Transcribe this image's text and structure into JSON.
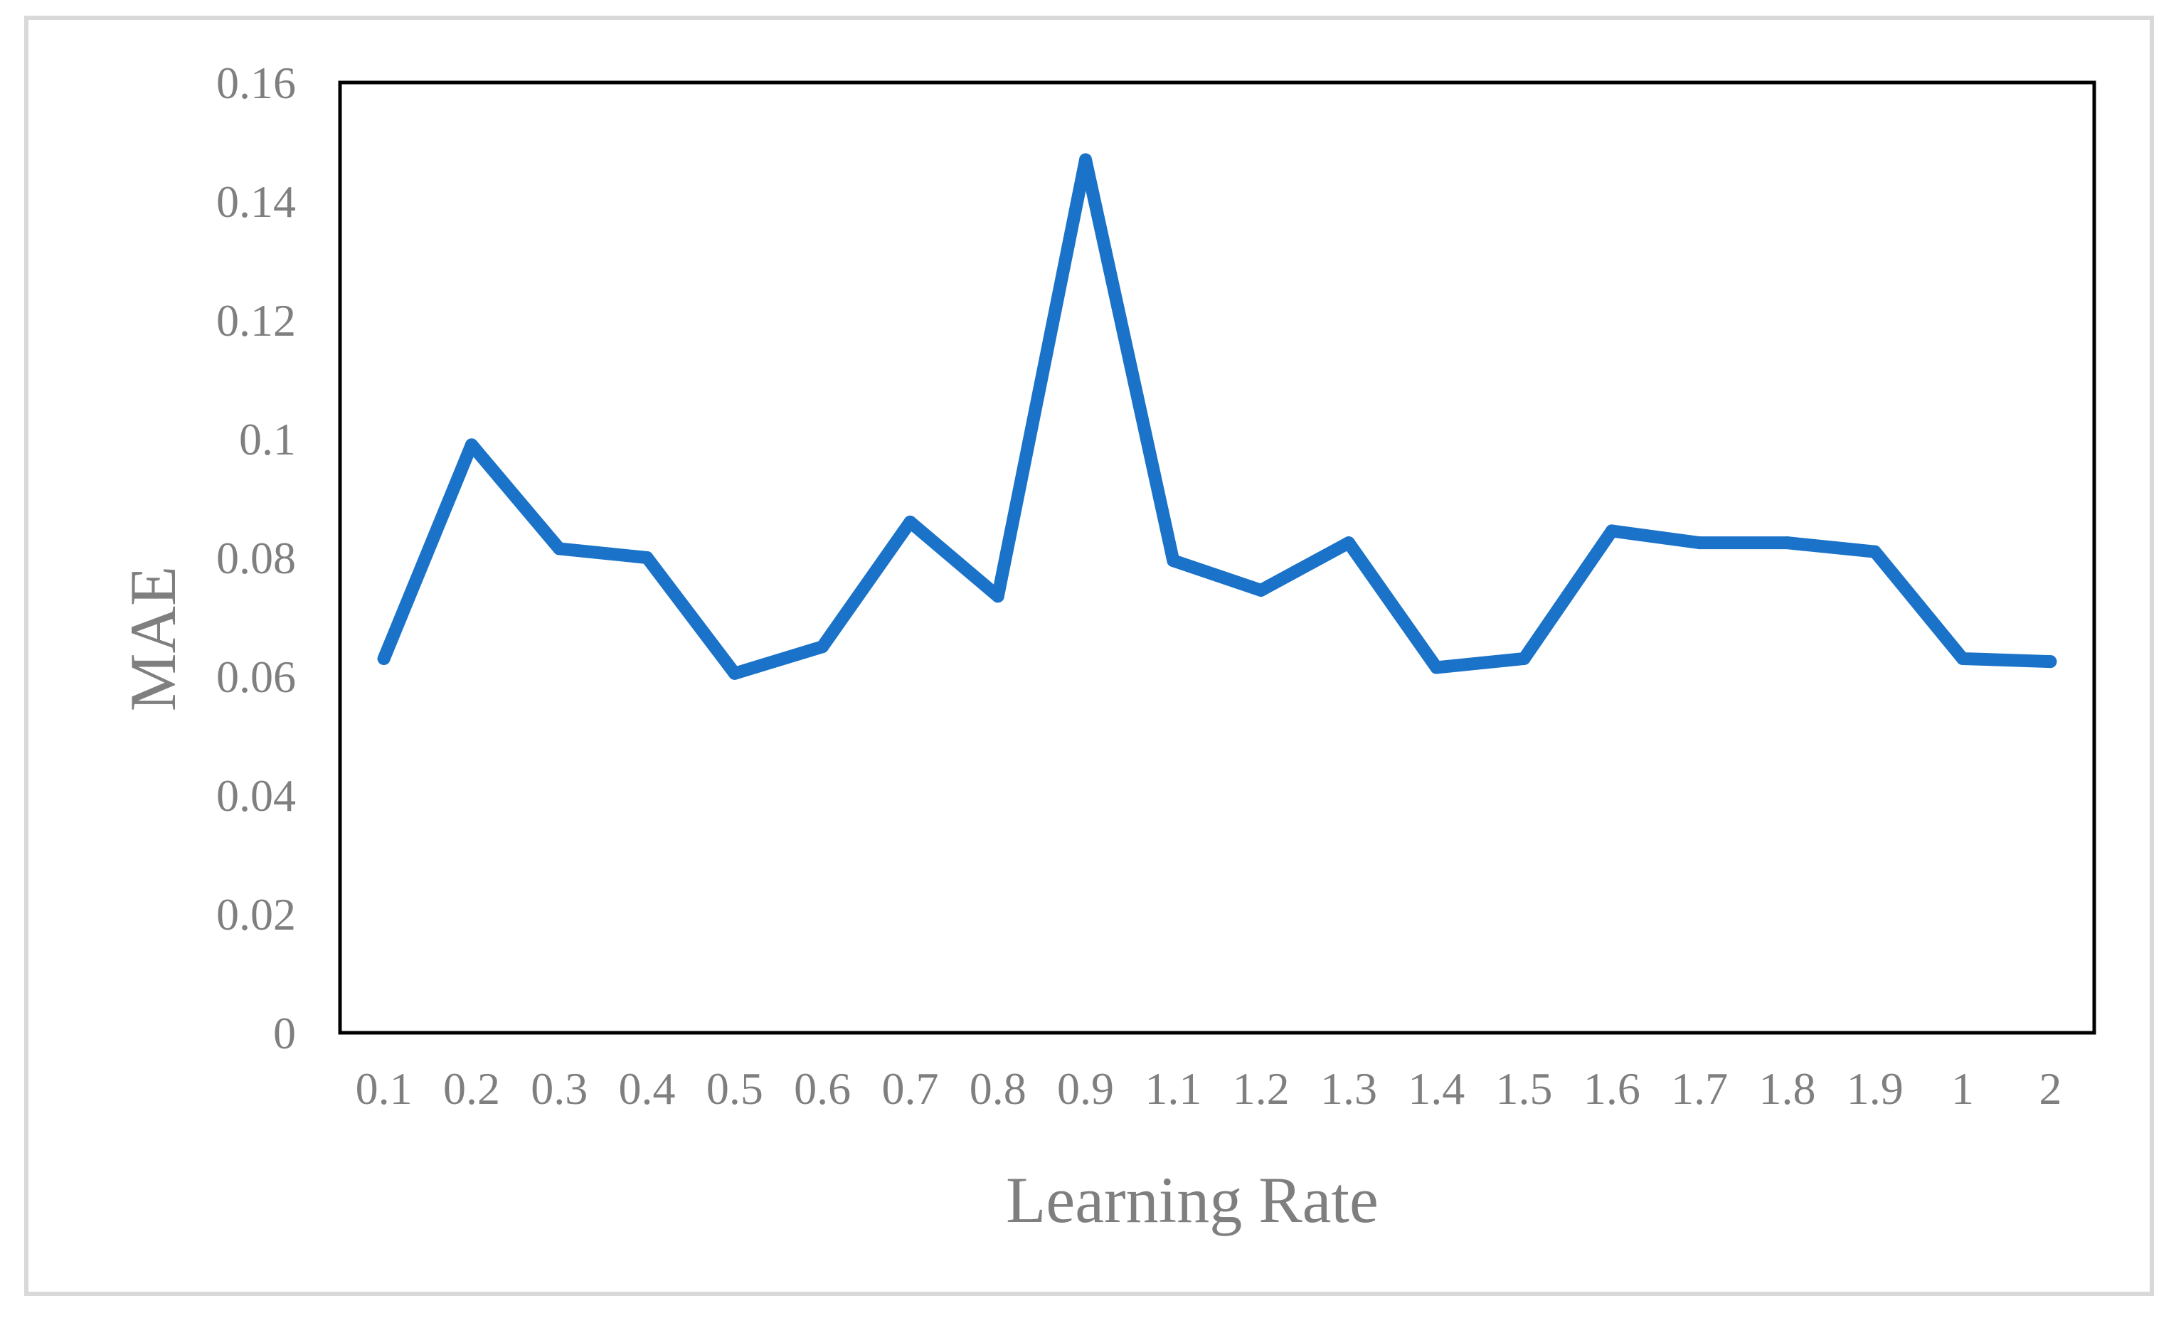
{
  "chart_data": {
    "type": "line",
    "title": "",
    "xlabel": "Learning Rate",
    "ylabel": "MAE",
    "categories": [
      "0.1",
      "0.2",
      "0.3",
      "0.4",
      "0.5",
      "0.6",
      "0.7",
      "0.8",
      "0.9",
      "1.1",
      "1.2",
      "1.3",
      "1.4",
      "1.5",
      "1.6",
      "1.7",
      "1.8",
      "1.9",
      "1",
      "2"
    ],
    "series": [
      {
        "values": [
          0.063,
          0.099,
          0.0815,
          0.08,
          0.0605,
          0.065,
          0.086,
          0.0735,
          0.147,
          0.0795,
          0.0745,
          0.0825,
          0.0615,
          0.063,
          0.0845,
          0.0825,
          0.0825,
          0.081,
          0.063,
          0.0625
        ],
        "color": "#1a73c8"
      }
    ],
    "yticks": [
      "0",
      "0.02",
      "0.04",
      "0.06",
      "0.08",
      "0.1",
      "0.12",
      "0.14",
      "0.16"
    ],
    "ylim": [
      0,
      0.16
    ],
    "grid": false,
    "legend": "none"
  }
}
